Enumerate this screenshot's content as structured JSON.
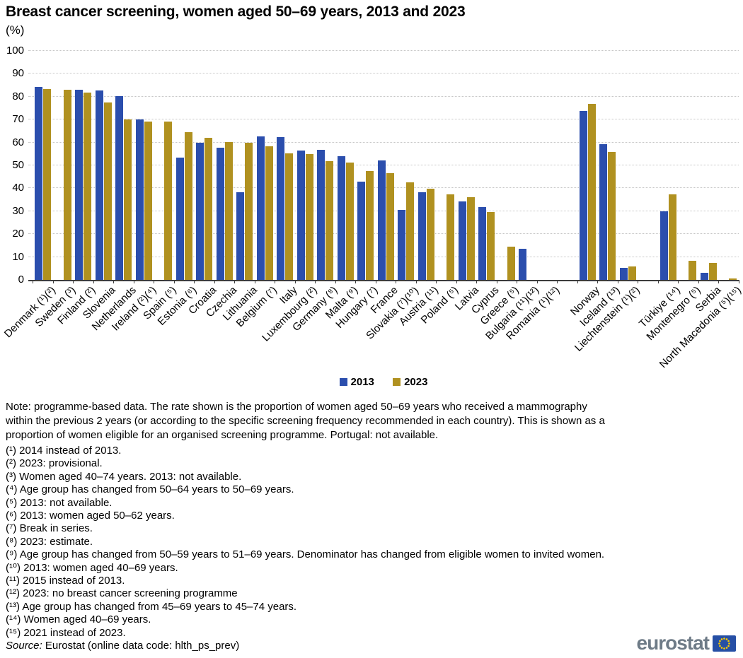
{
  "title": "Breast cancer screening, women aged 50–69 years, 2013 and 2023",
  "subtitle": "(%)",
  "chart_data": {
    "type": "bar",
    "title": "Breast cancer screening, women aged 50–69 years, 2013 and 2023",
    "unit": "%",
    "ylim": [
      0,
      100
    ],
    "yticks": [
      0,
      10,
      20,
      30,
      40,
      50,
      60,
      70,
      80,
      90,
      100
    ],
    "grid": "horizontal-dotted",
    "legend_position": "bottom-center",
    "series_meta": [
      {
        "name": "2013",
        "color": "#2B4EAD"
      },
      {
        "name": "2023",
        "color": "#B09120"
      }
    ],
    "groups": [
      {
        "label": "Denmark (¹)(²)",
        "y2013": 84.3,
        "y2023": 83.3
      },
      {
        "label": "Sweden (³)",
        "y2013": null,
        "y2023": 83.0
      },
      {
        "label": "Finland (²)",
        "y2013": 82.9,
        "y2023": 81.7
      },
      {
        "label": "Slovenia",
        "y2013": 82.6,
        "y2023": 77.5
      },
      {
        "label": "Netherlands",
        "y2013": 80.2,
        "y2023": 70.1
      },
      {
        "label": "Ireland (²)(⁴)",
        "y2013": 70.1,
        "y2023": 69.2
      },
      {
        "label": "Spain (⁵)",
        "y2013": null,
        "y2023": 69.0
      },
      {
        "label": "Estonia (⁶)",
        "y2013": 53.5,
        "y2023": 64.5
      },
      {
        "label": "Croatia",
        "y2013": 59.9,
        "y2023": 62.0
      },
      {
        "label": "Czechia",
        "y2013": 57.7,
        "y2023": 60.3
      },
      {
        "label": "Lithuania",
        "y2013": 38.4,
        "y2023": 59.9
      },
      {
        "label": "Belgium (⁷)",
        "y2013": 62.5,
        "y2023": 58.2
      },
      {
        "label": "Italy",
        "y2013": 62.4,
        "y2023": 55.4
      },
      {
        "label": "Luxembourg (²)",
        "y2013": 56.6,
        "y2023": 54.9
      },
      {
        "label": "Germany (⁸)",
        "y2013": 56.7,
        "y2023": 52.0
      },
      {
        "label": "Malta (⁹)",
        "y2013": 53.9,
        "y2023": 51.2
      },
      {
        "label": "Hungary (⁷)",
        "y2013": 43.0,
        "y2023": 47.6
      },
      {
        "label": "France",
        "y2013": 52.2,
        "y2023": 46.6
      },
      {
        "label": "Slovakia (⁷)(¹⁰)",
        "y2013": 30.6,
        "y2023": 42.7
      },
      {
        "label": "Austria (¹¹)",
        "y2013": 38.3,
        "y2023": 39.9
      },
      {
        "label": "Poland (⁵)",
        "y2013": null,
        "y2023": 37.2
      },
      {
        "label": "Latvia",
        "y2013": 34.2,
        "y2023": 36.0
      },
      {
        "label": "Cyprus",
        "y2013": 31.7,
        "y2023": 29.5
      },
      {
        "label": "Greece (⁵)",
        "y2013": null,
        "y2023": 14.5
      },
      {
        "label": "Bulgaria (¹¹)(¹²)",
        "y2013": 13.5,
        "y2023": null
      },
      {
        "label": "Romania (¹)(¹²)",
        "y2013": null,
        "y2023": null
      },
      {
        "spacer": true
      },
      {
        "label": "Norway",
        "y2013": 73.8,
        "y2023": 76.7
      },
      {
        "label": "Iceland (¹³)",
        "y2013": 59.2,
        "y2023": 55.9
      },
      {
        "label": "Liechtenstein (¹)(²)",
        "y2013": 5.2,
        "y2023": 5.8
      },
      {
        "spacer": true
      },
      {
        "label": "Türkiye (¹⁴)",
        "y2013": 30.0,
        "y2023": 37.4
      },
      {
        "label": "Montenegro (⁵)",
        "y2013": null,
        "y2023": 8.2
      },
      {
        "label": "Serbia",
        "y2013": 3.2,
        "y2023": 7.4
      },
      {
        "label": "North Macedonia (⁵)(¹⁵)",
        "y2013": null,
        "y2023": 0.6
      }
    ]
  },
  "legend": {
    "items": [
      {
        "label": "2013",
        "color": "#2B4EAD"
      },
      {
        "label": "2023",
        "color": "#B09120"
      }
    ]
  },
  "note_lines": [
    "Note: programme-based data. The rate shown is the proportion of women aged 50–69 years who received a mammography",
    "within the previous 2 years (or according to the specific screening frequency recommended in each country). This is shown as a",
    "proportion of women eligible for an organised screening programme. Portugal: not available."
  ],
  "footnotes": [
    "(¹) 2014 instead of 2013.",
    "(²) 2023: provisional.",
    "(³) Women aged 40–74 years. 2013: not available.",
    "(⁴) Age group has changed from 50–64 years to 50–69 years.",
    "(⁵) 2013: not available.",
    "(⁶) 2013: women aged 50–62 years.",
    "(⁷) Break in series.",
    "(⁸) 2023: estimate.",
    "(⁹) Age group has changed from 50–59 years to 51–69 years. Denominator has changed from eligible women to invited women.",
    "(¹⁰) 2013: women aged 40–69 years.",
    "(¹¹) 2015 instead of 2013.",
    "(¹²) 2023: no breast cancer screening programme",
    "(¹³) Age group has changed from 45–69 years to 45–74 years.",
    "(¹⁴) Women aged 40–69 years.",
    "(¹⁵) 2021 instead of 2023."
  ],
  "source": {
    "prefix": "Source:",
    "text": " Eurostat (online data code: hlth_ps_prev)"
  },
  "logo": {
    "text": "eurostat",
    "flag_blue": "#264FA5",
    "star_yellow": "#FFCC00"
  }
}
